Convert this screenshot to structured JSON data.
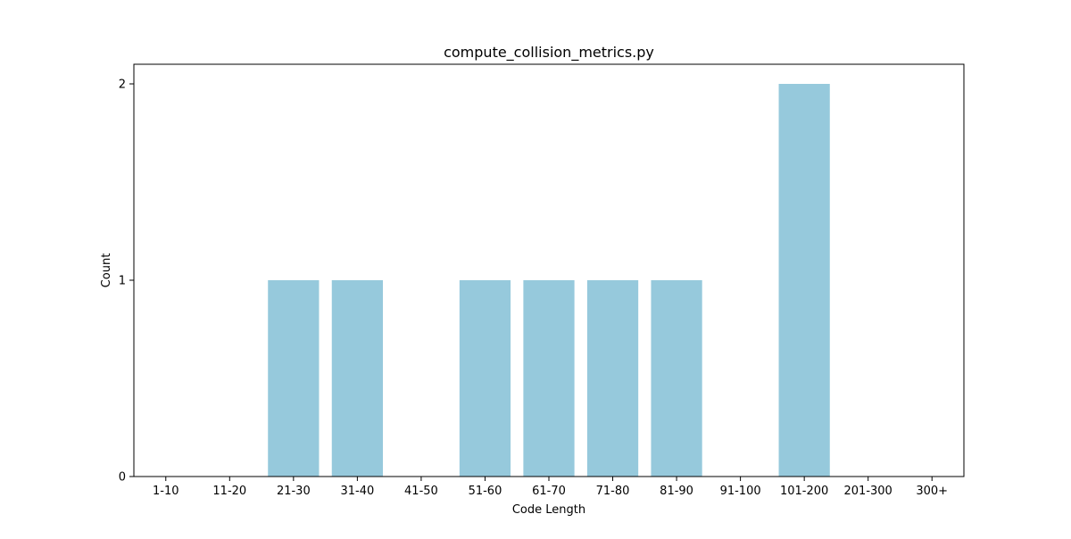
{
  "chart_data": {
    "type": "bar",
    "title": "compute_collision_metrics.py",
    "xlabel": "Code Length",
    "ylabel": "Count",
    "categories": [
      "1-10",
      "11-20",
      "21-30",
      "31-40",
      "41-50",
      "51-60",
      "61-70",
      "71-80",
      "81-90",
      "91-100",
      "101-200",
      "201-300",
      "300+"
    ],
    "values": [
      0,
      0,
      1,
      1,
      0,
      1,
      1,
      1,
      1,
      0,
      2,
      0,
      0
    ],
    "ylim": [
      0,
      2.1
    ],
    "yticks": [
      0,
      1,
      2
    ],
    "grid": false,
    "legend": false,
    "bar_color": "#96c9dc"
  }
}
